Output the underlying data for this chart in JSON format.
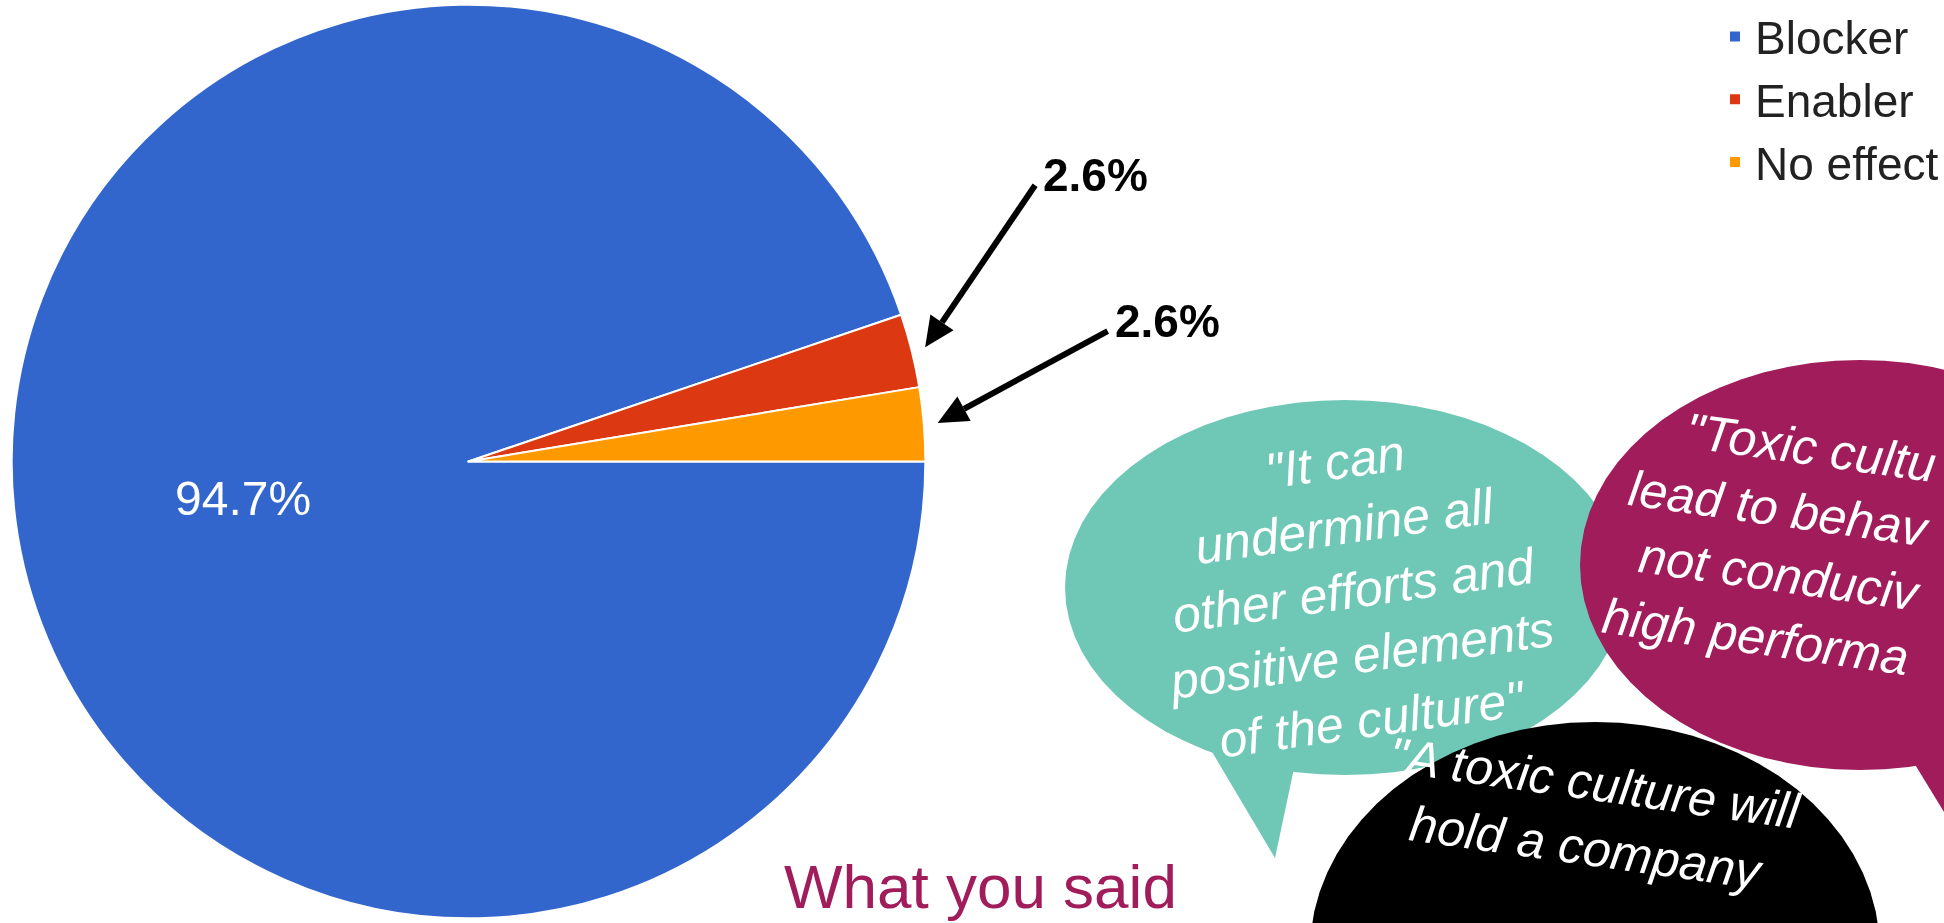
{
  "chart_data": {
    "type": "pie",
    "categories": [
      "Blocker",
      "Enabler",
      "No effect"
    ],
    "values": [
      94.7,
      2.6,
      2.6
    ],
    "colors": [
      "#3366cc",
      "#dc3912",
      "#ff9900"
    ],
    "value_labels": [
      "94.7%",
      "2.6%",
      "2.6%"
    ],
    "legend": "top right",
    "annotations": [
      "\"It can\nundermine all\nother efforts and\npositive elements\nof the culture\"",
      "\"Toxic cultu\nlead to behav\nnot conduciv\nhigh performa",
      "\"A toxic culture will\nhold a company",
      "What you said"
    ]
  }
}
